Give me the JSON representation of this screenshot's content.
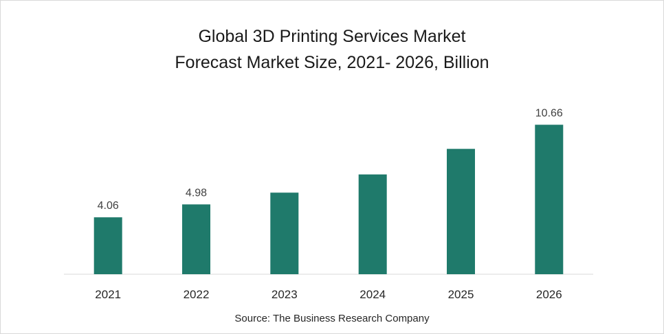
{
  "chart_data": {
    "type": "bar",
    "title_line1": "Global 3D Printing Services Market",
    "title_line2": "Forecast Market Size, 2021- 2026, Billion",
    "categories": [
      "2021",
      "2022",
      "2023",
      "2024",
      "2025",
      "2026"
    ],
    "values": [
      4.06,
      4.98,
      5.82,
      7.12,
      8.94,
      10.66
    ],
    "data_labels": [
      "4.06",
      "4.98",
      "",
      "",
      "",
      "10.66"
    ],
    "bar_color": "#1f7a6b",
    "grid": false,
    "legend": "none"
  },
  "source": "Source: The Business Research Company"
}
